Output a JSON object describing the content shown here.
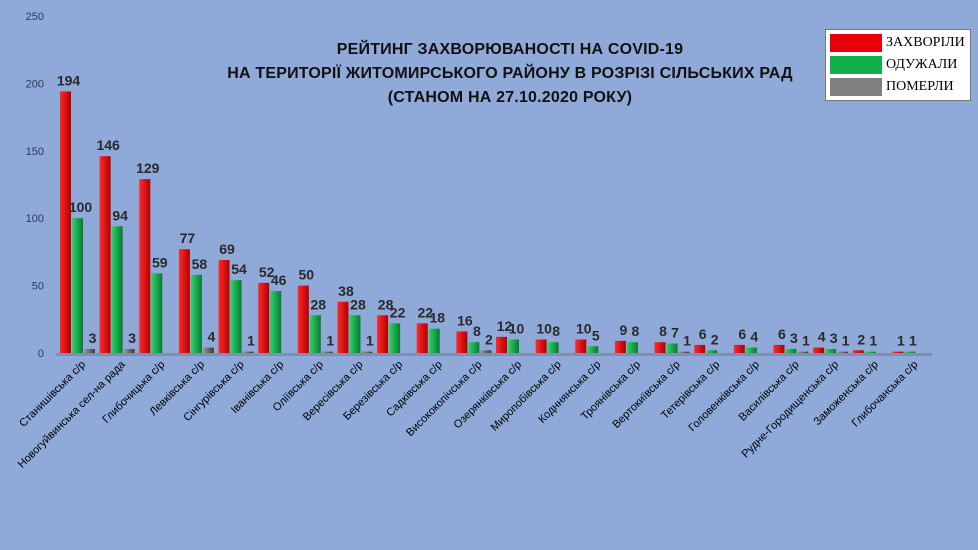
{
  "title_lines": [
    "РЕЙТИНГ ЗАХВОРЮВАНОСТІ НА COVID-19",
    "НА ТЕРИТОРІЇ ЖИТОМИРСЬКОГО РАЙОНУ В РОЗРІЗІ СІЛЬСЬКИХ РАД",
    "(СТАНОМ НА 27.10.2020 РОКУ)"
  ],
  "legend": [
    {
      "label": "ЗАХВОРІЛИ",
      "color": "#e8000a"
    },
    {
      "label": "ОДУЖАЛИ",
      "color": "#12b04a"
    },
    {
      "label": "ПОМЕРЛИ",
      "color": "#7f7f7f"
    }
  ],
  "chart_data": {
    "type": "bar",
    "title": "РЕЙТИНГ ЗАХВОРЮВАНОСТІ НА COVID-19 НА ТЕРИТОРІЇ ЖИТОМИРСЬКОГО РАЙОНУ В РОЗРІЗІ СІЛЬСЬКИХ РАД (СТАНОМ НА 27.10.2020 РОКУ)",
    "ylim": [
      0,
      250
    ],
    "yticks": [
      0,
      50,
      100,
      150,
      200,
      250
    ],
    "grid": false,
    "legend_position": "top-right",
    "categories": [
      "Станишівська с/р",
      "Новогуйвинська сел-на рада",
      "Глибочицька с/р",
      "Левківська с/р",
      "Сінгурівська с/р",
      "Іванівська с/р",
      "Оліївська с/р",
      "Вересівська с/р",
      "Березівська с/р",
      "Садківська с/р",
      "Висококопічська с/р",
      "Озерянківська с/р",
      "Миропобівська с/р",
      "Кодннянська с/р",
      "Троянівська с/р",
      "Вертокиївська с/р",
      "Тетерівська с/р",
      "Головенківська с/р",
      "Василівська с/р",
      "Рудне-Городищенська с/р",
      "Заможенська с/р",
      "Глибочанська с/р"
    ],
    "series": [
      {
        "name": "ЗАХВОРІЛИ",
        "values": [
          194,
          146,
          129,
          77,
          69,
          52,
          50,
          38,
          28,
          22,
          16,
          12,
          10,
          10,
          9,
          8,
          6,
          6,
          6,
          4,
          2,
          1
        ]
      },
      {
        "name": "ОДУЖАЛИ",
        "values": [
          100,
          94,
          59,
          58,
          54,
          46,
          28,
          28,
          22,
          18,
          8,
          10,
          8,
          5,
          8,
          7,
          2,
          4,
          3,
          3,
          1,
          1
        ]
      },
      {
        "name": "ПОМЕРЛИ",
        "values": [
          3,
          3,
          null,
          4,
          1,
          null,
          1,
          1,
          null,
          null,
          2,
          null,
          null,
          null,
          null,
          1,
          null,
          null,
          1,
          1,
          null,
          null
        ]
      }
    ]
  }
}
